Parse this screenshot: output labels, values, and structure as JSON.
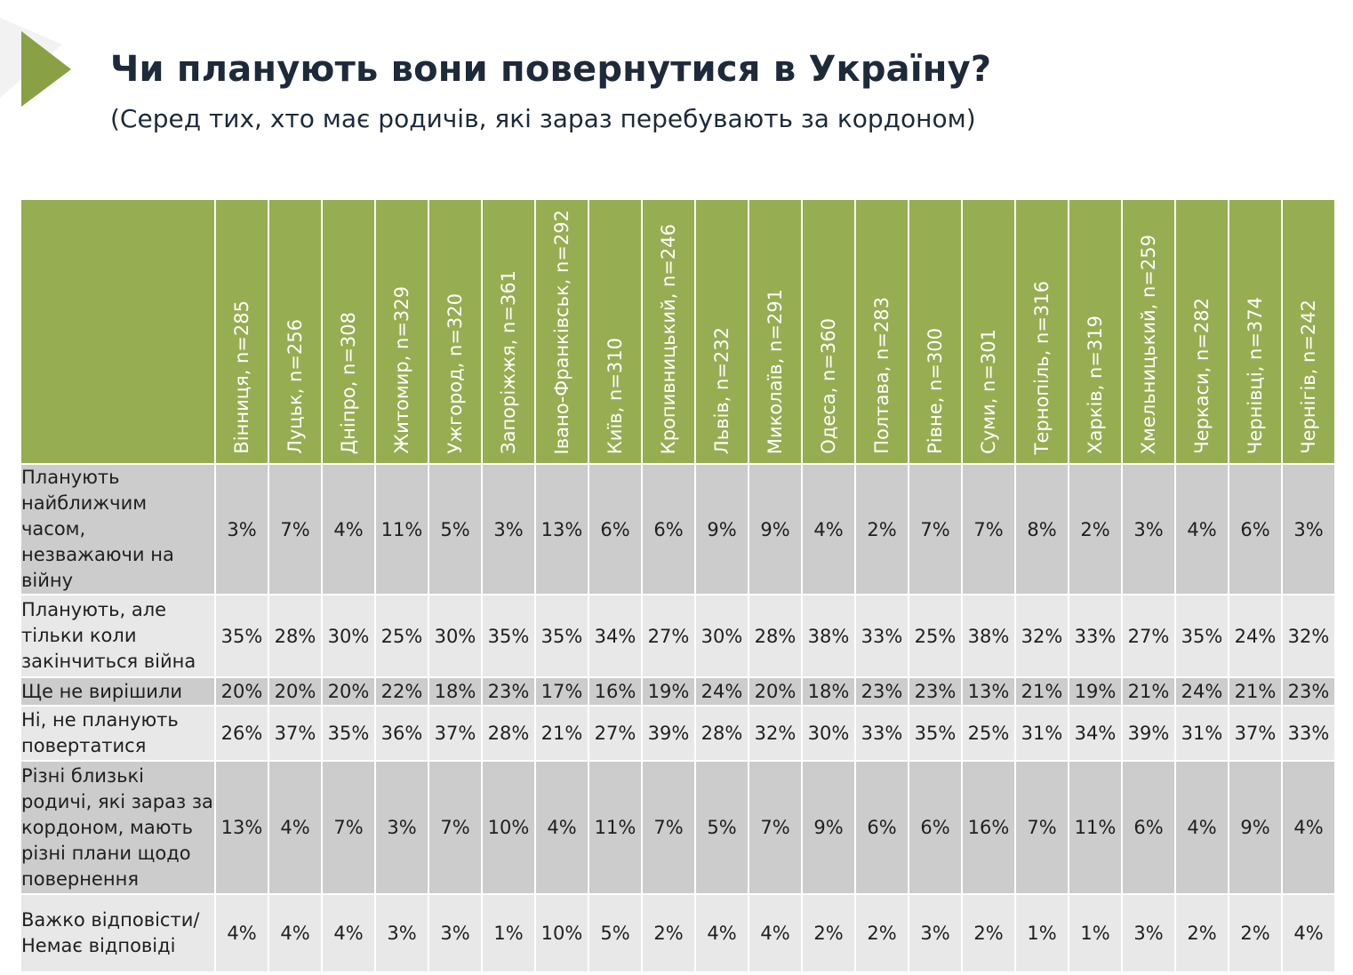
{
  "title": "Чи планують вони повернутися в Україну?",
  "subtitle": "(Серед тих, хто має родичів, які зараз перебувають за кордоном)",
  "colors": {
    "header_green": "#97ad52",
    "arrow_green": "#8aa044",
    "row_dark": "#cccccc",
    "row_light": "#e8e8e8",
    "title": "#1e2a3a"
  },
  "columns": [
    "Вінниця, n=285",
    "Луцьк, n=256",
    "Дніпро, n=308",
    "Житомир, n=329",
    "Ужгород, n=320",
    "Запоріжжя, n=361",
    "Івано-Франківськ, n=292",
    "Київ, n=310",
    "Кропивницький, n=246",
    "Львів, n=232",
    "Миколаїв, n=291",
    "Одеса, n=360",
    "Полтава, n=283",
    "Рівне, n=300",
    "Суми, n=301",
    "Тернопіль, n=316",
    "Харків, n=319",
    "Хмельницький, n=259",
    "Черкаси, n=282",
    "Чернівці, n=374",
    "Чернігів, n=242"
  ],
  "rows": [
    {
      "label": "Планують найближчим часом, незважаючи на війну",
      "values": [
        "3%",
        "7%",
        "4%",
        "11%",
        "5%",
        "3%",
        "13%",
        "6%",
        "6%",
        "9%",
        "9%",
        "4%",
        "2%",
        "7%",
        "7%",
        "8%",
        "2%",
        "3%",
        "4%",
        "6%",
        "3%"
      ]
    },
    {
      "label": "Планують, але тільки коли закінчиться війна",
      "values": [
        "35%",
        "28%",
        "30%",
        "25%",
        "30%",
        "35%",
        "35%",
        "34%",
        "27%",
        "30%",
        "28%",
        "38%",
        "33%",
        "25%",
        "38%",
        "32%",
        "33%",
        "27%",
        "35%",
        "24%",
        "32%"
      ]
    },
    {
      "label": "Ще не вирішили",
      "values": [
        "20%",
        "20%",
        "20%",
        "22%",
        "18%",
        "23%",
        "17%",
        "16%",
        "19%",
        "24%",
        "20%",
        "18%",
        "23%",
        "23%",
        "13%",
        "21%",
        "19%",
        "21%",
        "24%",
        "21%",
        "23%"
      ]
    },
    {
      "label": "Ні, не планують повертатися",
      "values": [
        "26%",
        "37%",
        "35%",
        "36%",
        "37%",
        "28%",
        "21%",
        "27%",
        "39%",
        "28%",
        "32%",
        "30%",
        "33%",
        "35%",
        "25%",
        "31%",
        "34%",
        "39%",
        "31%",
        "37%",
        "33%"
      ]
    },
    {
      "label": "Різні близькі родичі, які зараз за кордоном, мають різні плани щодо повернення",
      "values": [
        "13%",
        "4%",
        "7%",
        "3%",
        "7%",
        "10%",
        "4%",
        "11%",
        "7%",
        "5%",
        "7%",
        "9%",
        "6%",
        "6%",
        "16%",
        "7%",
        "11%",
        "6%",
        "4%",
        "9%",
        "4%"
      ]
    },
    {
      "label": "Важко відповісти/Немає відповіді",
      "values": [
        "4%",
        "4%",
        "4%",
        "3%",
        "3%",
        "1%",
        "10%",
        "5%",
        "2%",
        "4%",
        "4%",
        "2%",
        "2%",
        "3%",
        "2%",
        "1%",
        "1%",
        "3%",
        "2%",
        "2%",
        "4%"
      ]
    }
  ]
}
